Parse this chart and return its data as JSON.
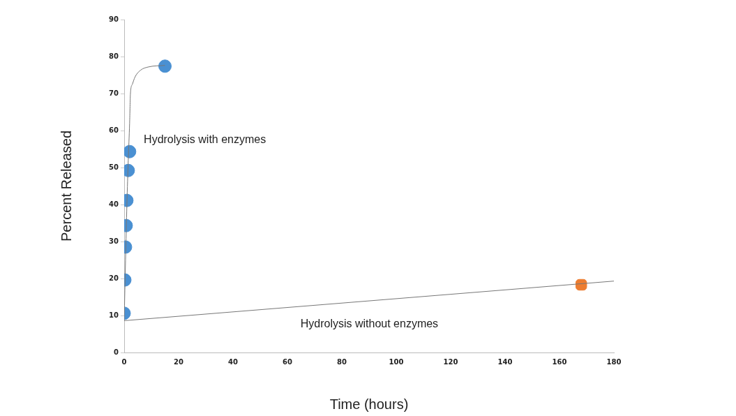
{
  "chart_data": {
    "type": "scatter",
    "xlabel": "Time (hours)",
    "ylabel": "Percent Released",
    "xlim": [
      0,
      180
    ],
    "xticks": [
      0,
      20,
      40,
      60,
      80,
      100,
      120,
      140,
      160,
      180
    ],
    "ylim": [
      0,
      90
    ],
    "yticks": [
      0,
      10,
      20,
      30,
      40,
      50,
      60,
      70,
      80,
      90
    ],
    "grid": false,
    "legend": false,
    "series": [
      {
        "type": "line",
        "color": "#777777",
        "marker": "none",
        "x": [
          0,
          0.5,
          1,
          1.5,
          2,
          2.3,
          3,
          4,
          6,
          9,
          15
        ],
        "values": [
          8.6,
          25,
          40,
          52,
          62,
          70,
          72.5,
          74.5,
          76.3,
          77.2,
          77.6
        ]
      },
      {
        "type": "line",
        "color": "#777777",
        "marker": "none",
        "x": [
          0,
          180
        ],
        "values": [
          8.6,
          19.3
        ]
      },
      {
        "type": "scatter",
        "color": "#4a90d2",
        "marker": "circle",
        "x": [
          0,
          0.25,
          0.5,
          0.75,
          1,
          1.5,
          2,
          15
        ],
        "values": [
          10.6,
          19.6,
          28.5,
          34.3,
          41.1,
          49.2,
          54.3,
          77.4
        ]
      },
      {
        "type": "scatter",
        "color": "#ed7d31",
        "marker": "square",
        "x": [
          168
        ],
        "values": [
          18.3
        ]
      }
    ],
    "annotations": [
      "Hydrolysis with enzymes",
      "Hydrolysis without enzymes"
    ]
  }
}
